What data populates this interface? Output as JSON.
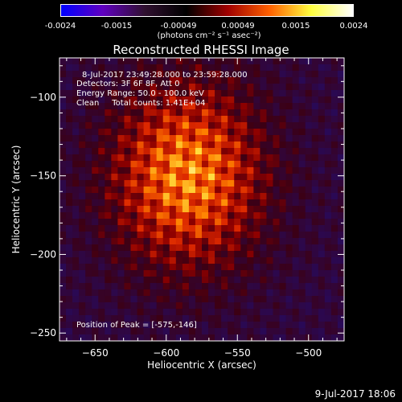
{
  "colorbar": {
    "tick_labels": [
      "-0.0024",
      "-0.0015",
      "-0.00049",
      "0.00049",
      "0.0015",
      "0.0024"
    ],
    "tick_values": [
      -0.0024,
      -0.0015,
      -0.00049,
      0.00049,
      0.0015,
      0.0024
    ],
    "units": "(photons cm⁻² s⁻¹ asec⁻²)",
    "range": [
      -0.0024,
      0.0024
    ],
    "colors": [
      "#0000ff",
      "#6000c0",
      "#301030",
      "#000000",
      "#a00000",
      "#ff6000",
      "#ffff40",
      "#ffffff"
    ]
  },
  "chart_data": {
    "type": "heatmap",
    "title": "Reconstructed RHESSI Image",
    "xlabel": "Heliocentric X (arcsec)",
    "ylabel": "Heliocentric Y (arcsec)",
    "xlim": [
      -675,
      -475
    ],
    "ylim": [
      -255,
      -75
    ],
    "xticks": [
      -650,
      -600,
      -550,
      -500
    ],
    "yticks": [
      -250,
      -200,
      -150,
      -100
    ],
    "xtick_labels": [
      "−650",
      "−600",
      "−550",
      "−500"
    ],
    "ytick_labels": [
      "−250",
      "−200",
      "−150",
      "−100"
    ],
    "peak": [
      -575,
      -146
    ],
    "source_center": [
      -585,
      -150
    ],
    "background": "#30107a"
  },
  "annotations": {
    "time_range": "8-Jul-2017 23:49:28.000 to 23:59:28.000",
    "detectors": "Detectors: 3F 6F 8F, Att 0",
    "energy": "Energy Range: 50.0 - 100.0 keV",
    "method": "Clean     Total counts: 1.41E+04",
    "peak_text": "Position of Peak = [-575,-146]"
  },
  "timestamp": "9-Jul-2017 18:06"
}
